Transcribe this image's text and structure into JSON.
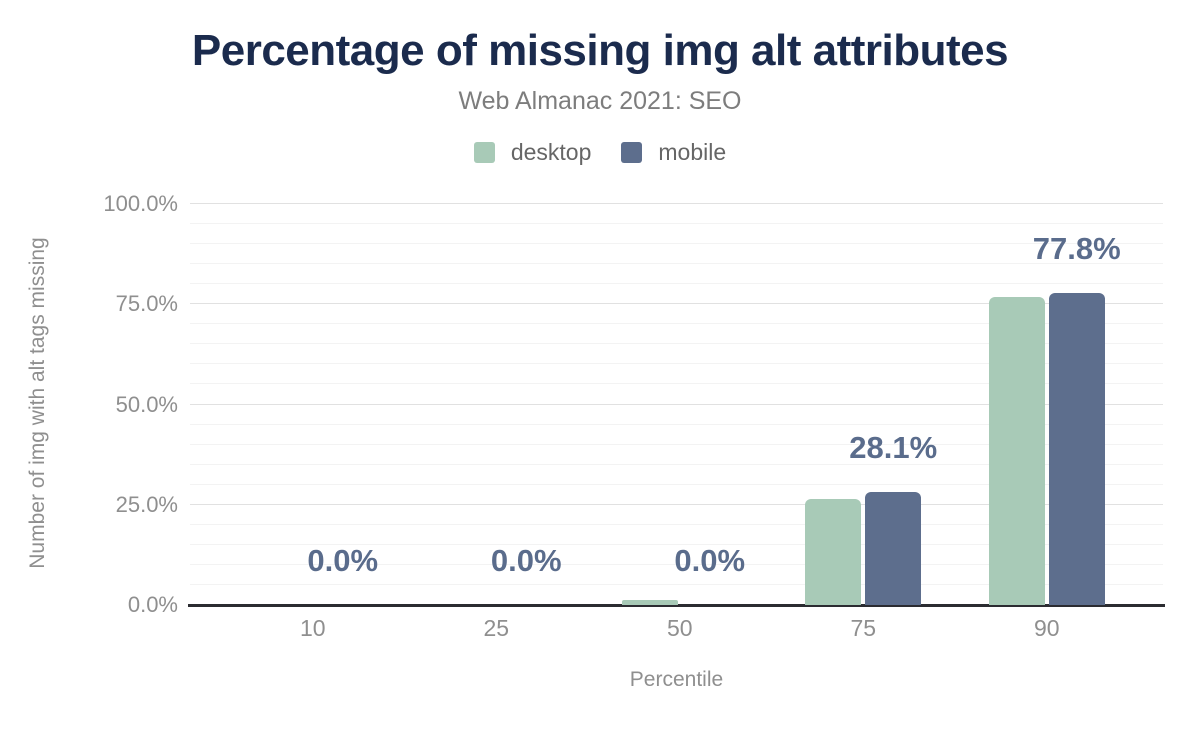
{
  "chart_data": {
    "type": "bar",
    "title": "Percentage of missing img alt attributes",
    "subtitle": "Web Almanac 2021: SEO",
    "xlabel": "Percentile",
    "ylabel": "Number of img with alt tags missing",
    "categories": [
      "10",
      "25",
      "50",
      "75",
      "90"
    ],
    "series": [
      {
        "name": "desktop",
        "color": "#a8cab7",
        "values": [
          0.0,
          0.0,
          1.2,
          26.5,
          76.8
        ]
      },
      {
        "name": "mobile",
        "color": "#5d6e8d",
        "values": [
          0.0,
          0.0,
          0.0,
          28.1,
          77.8
        ]
      }
    ],
    "data_labels": [
      "0.0%",
      "0.0%",
      "0.0%",
      "28.1%",
      "77.8%"
    ],
    "data_labels_follow_series": "mobile",
    "y_ticks": [
      {
        "label": "0.0%",
        "value": 0
      },
      {
        "label": "25.0%",
        "value": 25
      },
      {
        "label": "50.0%",
        "value": 50
      },
      {
        "label": "75.0%",
        "value": 75
      },
      {
        "label": "100.0%",
        "value": 100
      }
    ],
    "ylim": [
      0,
      100
    ],
    "grid": {
      "major_step": 25,
      "minor_step": 5,
      "grid_on": true
    },
    "legend_position": "top"
  },
  "colors": {
    "title": "#1b2b4d",
    "subtitle": "#7d7d7d",
    "data_label": "#5a6c8c",
    "axis_line": "#2b2c31",
    "tick_text": "#8f8f8f",
    "gridline_major": "#e1e1e1",
    "gridline_minor": "#f3f3f3",
    "background": "#ffffff"
  }
}
